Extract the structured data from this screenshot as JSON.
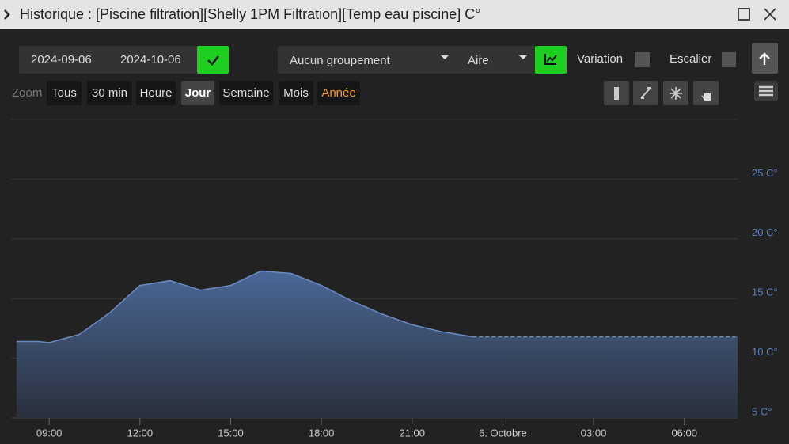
{
  "window": {
    "title": "Historique : [Piscine filtration][Shelly 1PM Filtration][Temp eau piscine] C°"
  },
  "toolbar": {
    "date_from": "2024-09-06",
    "date_to": "2024-10-06",
    "grouping": "Aucun groupement",
    "chart_style": "Aire",
    "variation": "Variation",
    "step": "Escalier"
  },
  "zoom": {
    "label": "Zoom",
    "buttons": [
      "Tous",
      "30 min",
      "Heure",
      "Jour",
      "Semaine",
      "Mois",
      "Année"
    ],
    "active": "Jour"
  },
  "chart_data": {
    "type": "area",
    "x": [
      7.92,
      8.65,
      9,
      10,
      11,
      12,
      13,
      14,
      15,
      16,
      17,
      18,
      19,
      20,
      21,
      22,
      23,
      31.76
    ],
    "series": [
      {
        "color": "#6a8cc4",
        "values": [
          11.4,
          11.4,
          11.3,
          12.0,
          13.8,
          16.1,
          16.5,
          15.7,
          16.1,
          17.3,
          17.1,
          16.1,
          14.8,
          13.7,
          12.8,
          12.2,
          11.8,
          11.8
        ]
      }
    ],
    "last_segment": "dashed",
    "xlim": [
      7.74,
      31.76
    ],
    "xticks": [
      {
        "value": 9,
        "label": "09:00"
      },
      {
        "value": 12,
        "label": "12:00"
      },
      {
        "value": 15,
        "label": "15:00"
      },
      {
        "value": 18,
        "label": "18:00"
      },
      {
        "value": 21,
        "label": "21:00"
      },
      {
        "value": 24,
        "label": "6. Octobre"
      },
      {
        "value": 27,
        "label": "03:00"
      },
      {
        "value": 30,
        "label": "06:00"
      }
    ],
    "ylim": [
      5,
      30
    ],
    "yticks": [
      {
        "value": 5,
        "label": "5 C°"
      },
      {
        "value": 10,
        "label": "10 C°"
      },
      {
        "value": 15,
        "label": "15 C°"
      },
      {
        "value": 20,
        "label": "20 C°"
      },
      {
        "value": 25,
        "label": "25 C°"
      }
    ],
    "grid": true
  }
}
